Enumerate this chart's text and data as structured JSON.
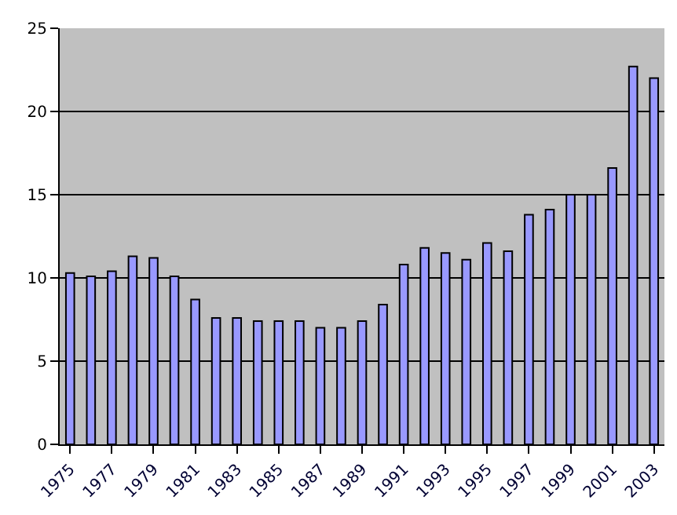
{
  "chart_data": {
    "type": "bar",
    "categories": [
      "1975",
      null,
      "1977",
      null,
      "1979",
      null,
      "1981",
      null,
      "1983",
      null,
      "1985",
      null,
      "1987",
      null,
      "1989",
      null,
      "1991",
      null,
      "1993",
      null,
      "1995",
      null,
      "1997",
      null,
      "1999",
      null,
      "2001",
      null,
      "2003"
    ],
    "values": [
      10.3,
      10.1,
      10.4,
      11.3,
      11.2,
      10.1,
      8.7,
      7.6,
      7.6,
      7.4,
      7.4,
      7.4,
      7.0,
      7.0,
      7.4,
      8.4,
      10.8,
      11.8,
      11.5,
      11.1,
      12.1,
      11.6,
      13.8,
      14.1,
      15.0,
      15.0,
      16.6,
      22.7,
      22.0
    ],
    "color": "#9999ff",
    "ylim": [
      0,
      25
    ],
    "yticks": [
      0,
      5,
      10,
      15,
      20,
      25
    ],
    "grid": "y"
  }
}
